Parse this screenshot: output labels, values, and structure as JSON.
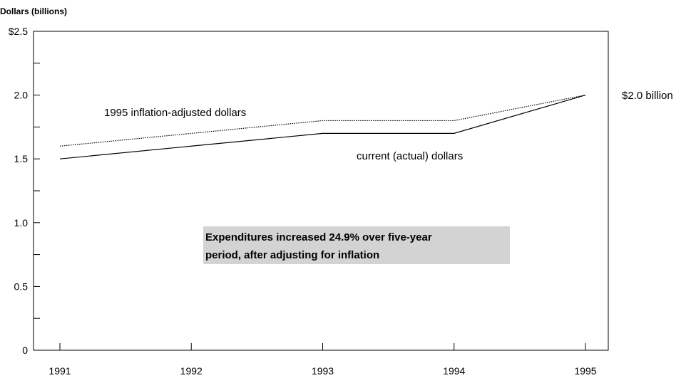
{
  "chart_data": {
    "type": "line",
    "ylabel": "Dollars (billions)",
    "x": [
      "1991",
      "1992",
      "1993",
      "1994",
      "1995"
    ],
    "ylim": [
      0,
      2.5
    ],
    "y_tick_labels": [
      "0",
      "0.5",
      "1.0",
      "1.5",
      "2.0",
      "$2.5"
    ],
    "y_ticks": [
      0,
      0.5,
      1.0,
      1.5,
      2.0,
      2.5
    ],
    "grid": false,
    "series": [
      {
        "name": "1995 inflation-adjusted dollars",
        "values": [
          1.6,
          1.7,
          1.8,
          1.8,
          2.0
        ],
        "style": "dotted",
        "color": "#000000"
      },
      {
        "name": "current (actual) dollars",
        "values": [
          1.5,
          1.6,
          1.7,
          1.7,
          2.0
        ],
        "style": "solid",
        "color": "#000000"
      }
    ],
    "end_label": "$2.0 billion",
    "annotation": {
      "lines": [
        "Expenditures increased 24.9% over five-year",
        "period, after adjusting for inflation"
      ],
      "background": "#d3d3d3"
    }
  }
}
